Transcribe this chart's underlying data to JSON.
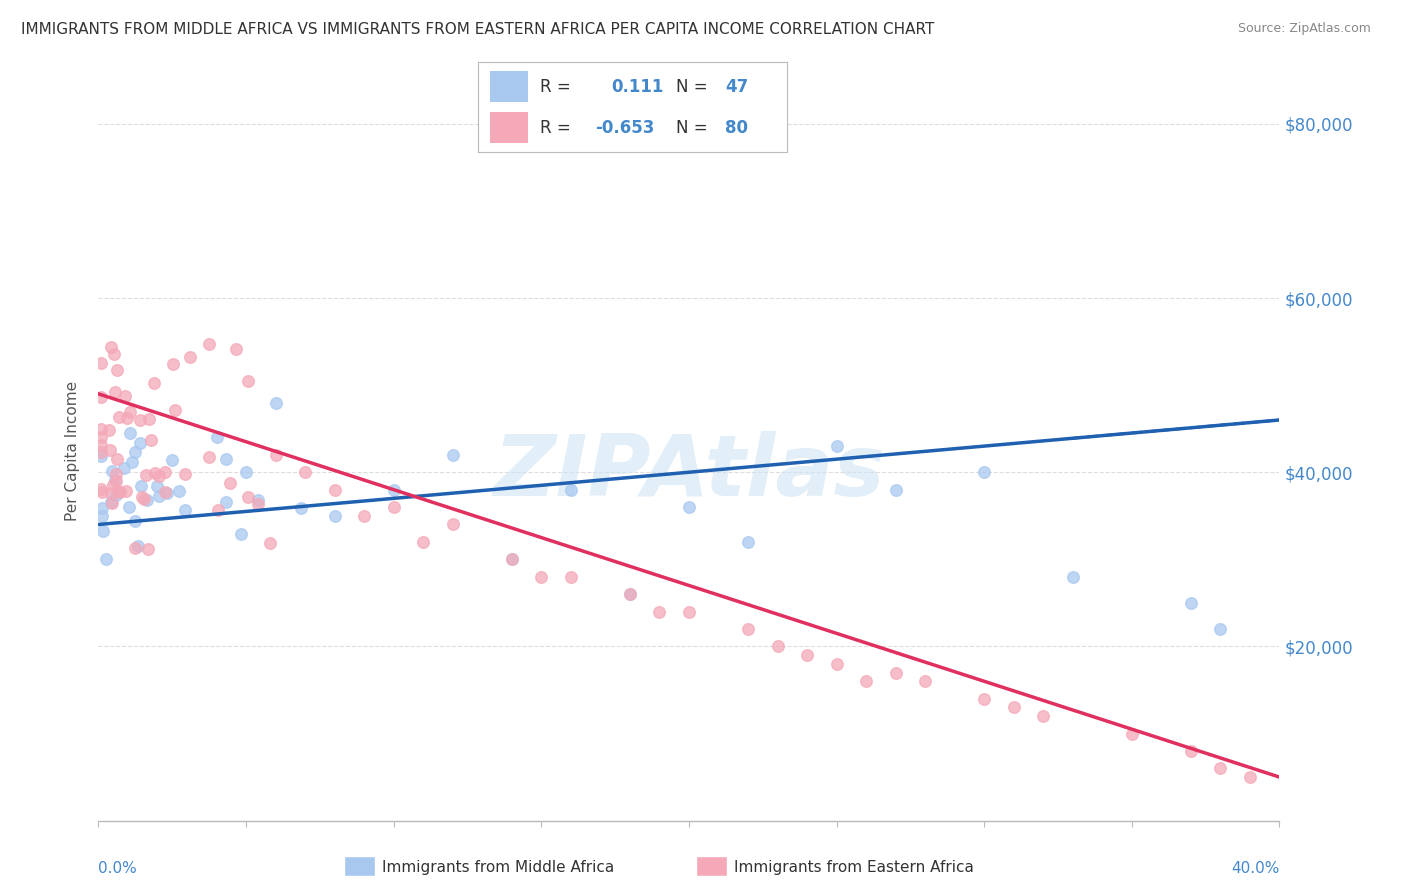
{
  "title": "IMMIGRANTS FROM MIDDLE AFRICA VS IMMIGRANTS FROM EASTERN AFRICA PER CAPITA INCOME CORRELATION CHART",
  "source": "Source: ZipAtlas.com",
  "ylabel": "Per Capita Income",
  "xlim": [
    0.0,
    0.4
  ],
  "ylim": [
    0,
    85000
  ],
  "watermark": "ZIPAtlas",
  "blue_color": "#A8C8F0",
  "pink_color": "#F4A8B8",
  "blue_line_color": "#2060B0",
  "pink_line_color": "#E03060",
  "background_color": "#FFFFFF",
  "grid_color": "#CCCCCC",
  "title_fontsize": 11,
  "axis_label_color": "#4488CC",
  "blue_intercept": 34000,
  "blue_slope": 30000,
  "pink_intercept": 49000,
  "pink_slope": -110000
}
